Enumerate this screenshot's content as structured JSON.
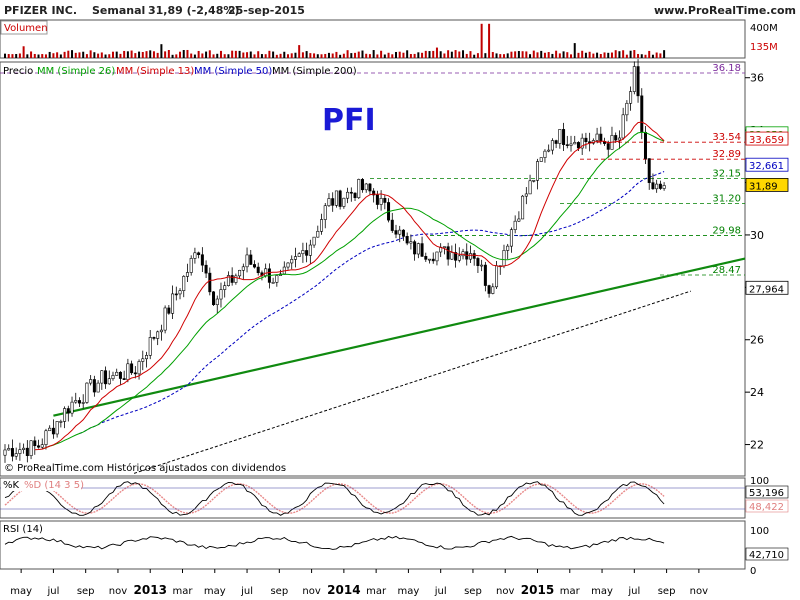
{
  "header": {
    "company": "PFIZER INC.",
    "period": "Semanal",
    "quote": "31,89 (-2,48%)",
    "date": "25-sep-2015",
    "site": "www.ProRealTime.com"
  },
  "volume_panel": {
    "label": "Volumen",
    "axis_labels": [
      "400M",
      "135M"
    ],
    "axis_values": [
      400,
      135
    ],
    "unit_millions": true
  },
  "price_panel": {
    "legend": [
      {
        "label": "Precio",
        "color": "#000000"
      },
      {
        "label": "MM (Simple 26)",
        "color": "#00a000"
      },
      {
        "label": "MM (Simple 13)",
        "color": "#d00000"
      },
      {
        "label": "MM (Simple 50)",
        "color": "#0000c0"
      },
      {
        "label": "MM (Simple 200)",
        "color": "#000000"
      }
    ],
    "ticker": "PFI",
    "watermark": "© ProRealTime.com  Históricos ajustados con dividendos",
    "y_ticks": [
      22,
      24,
      26,
      28,
      30,
      32,
      34,
      36
    ],
    "y_tick_labels": [
      "22",
      "24",
      "26",
      "28",
      "30",
      "32",
      "34",
      "36"
    ],
    "ylim": [
      20.8,
      36.6
    ],
    "levels": [
      {
        "label": "36.18",
        "value": 36.18,
        "color": "#7a2a9a",
        "style": "dash"
      },
      {
        "label": "33.54",
        "value": 33.54,
        "color": "#cc0000",
        "style": "dash"
      },
      {
        "label": "32.89",
        "value": 32.89,
        "color": "#cc0000",
        "style": "dash"
      },
      {
        "label": "32.15",
        "value": 32.15,
        "color": "#008000",
        "style": "dash"
      },
      {
        "label": "31.20",
        "value": 31.2,
        "color": "#008000",
        "style": "dash"
      },
      {
        "label": "29.98",
        "value": 29.98,
        "color": "#008000",
        "style": "dash"
      },
      {
        "label": "28.47",
        "value": 28.47,
        "color": "#008000",
        "style": "dash"
      }
    ],
    "value_tags": [
      {
        "label": "33,859",
        "value": 33.859,
        "color": "#00a000"
      },
      {
        "label": "33,659",
        "value": 33.659,
        "color": "#d00000"
      },
      {
        "label": "32,661",
        "value": 32.661,
        "color": "#0000c0"
      },
      {
        "label": "31,89",
        "value": 31.89,
        "color": "#000000",
        "highlight": "#ffd700"
      },
      {
        "label": "27,964",
        "value": 27.964,
        "color": "#000000"
      }
    ]
  },
  "stoch_panel": {
    "label_k": "%K",
    "label_d": "%D (14 3 5)",
    "axis_labels": [
      "100",
      "53,196",
      "48,422"
    ],
    "axis_values": [
      100,
      53.196,
      48.422
    ]
  },
  "rsi_panel": {
    "label": "RSI (14)",
    "axis_labels": [
      "100",
      "42,710",
      "0"
    ],
    "axis_values": [
      100,
      42.71,
      0
    ]
  },
  "x_axis": {
    "labels": [
      "may",
      "jul",
      "sep",
      "nov",
      "2013",
      "mar",
      "may",
      "jul",
      "sep",
      "nov",
      "2014",
      "mar",
      "may",
      "jul",
      "sep",
      "nov",
      "2015",
      "mar",
      "may",
      "jul",
      "sep",
      "nov"
    ],
    "bold": [
      "2013",
      "2014",
      "2015"
    ]
  },
  "chart_data": {
    "type": "candlestick",
    "frequency": "weekly",
    "x_range": [
      "2012-04",
      "2015-11"
    ],
    "close_path": [
      [
        "2012-04",
        21.8
      ],
      [
        "2012-06",
        21.9
      ],
      [
        "2012-08",
        23.5
      ],
      [
        "2012-10",
        24.5
      ],
      [
        "2012-12",
        24.8
      ],
      [
        "2013-02",
        27.0
      ],
      [
        "2013-04",
        29.5
      ],
      [
        "2013-05",
        27.5
      ],
      [
        "2013-07",
        29.0
      ],
      [
        "2013-09",
        28.2
      ],
      [
        "2013-11",
        29.8
      ],
      [
        "2013-12",
        31.2
      ],
      [
        "2014-02",
        31.8
      ],
      [
        "2014-03",
        31.5
      ],
      [
        "2014-05",
        29.5
      ],
      [
        "2014-07",
        29.3
      ],
      [
        "2014-09",
        29.4
      ],
      [
        "2014-10",
        28.0
      ],
      [
        "2014-12",
        31.2
      ],
      [
        "2015-02",
        33.8
      ],
      [
        "2015-04",
        33.6
      ],
      [
        "2015-06",
        33.5
      ],
      [
        "2015-07",
        36.1
      ],
      [
        "2015-08",
        31.5
      ],
      [
        "2015-09",
        31.89
      ]
    ],
    "trendline": [
      [
        "2012-07",
        23.1
      ],
      [
        "2015-11",
        29.1
      ]
    ],
    "last_close": 31.89,
    "change_pct": -2.48
  }
}
